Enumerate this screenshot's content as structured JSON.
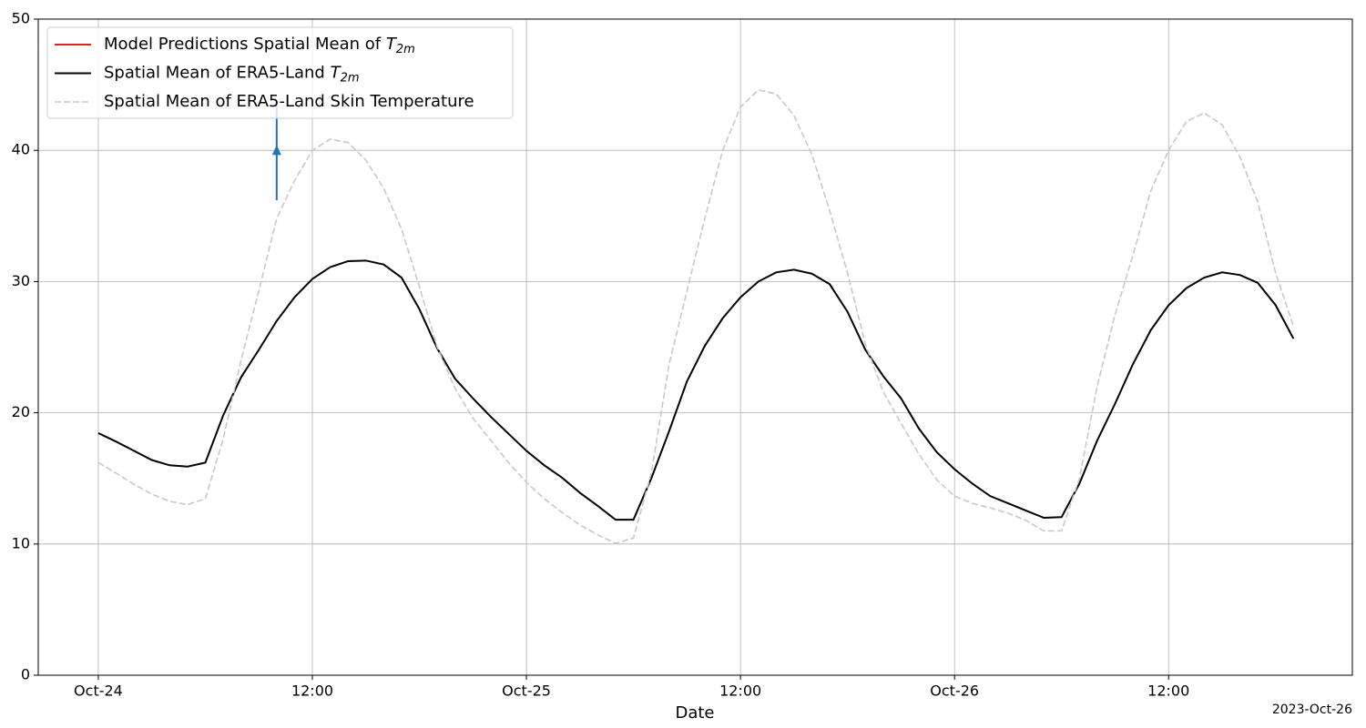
{
  "chart_data": {
    "type": "line",
    "xlabel": "Date",
    "offset_label": "2023-Oct-26",
    "x": [
      "2023-10-24T00:00",
      "2023-10-24T01:00",
      "2023-10-24T02:00",
      "2023-10-24T03:00",
      "2023-10-24T04:00",
      "2023-10-24T05:00",
      "2023-10-24T06:00",
      "2023-10-24T07:00",
      "2023-10-24T08:00",
      "2023-10-24T09:00",
      "2023-10-24T10:00",
      "2023-10-24T11:00",
      "2023-10-24T12:00",
      "2023-10-24T13:00",
      "2023-10-24T14:00",
      "2023-10-24T15:00",
      "2023-10-24T16:00",
      "2023-10-24T17:00",
      "2023-10-24T18:00",
      "2023-10-24T19:00",
      "2023-10-24T20:00",
      "2023-10-24T21:00",
      "2023-10-24T22:00",
      "2023-10-24T23:00",
      "2023-10-25T00:00",
      "2023-10-25T01:00",
      "2023-10-25T02:00",
      "2023-10-25T03:00",
      "2023-10-25T04:00",
      "2023-10-25T05:00",
      "2023-10-25T06:00",
      "2023-10-25T07:00",
      "2023-10-25T08:00",
      "2023-10-25T09:00",
      "2023-10-25T10:00",
      "2023-10-25T11:00",
      "2023-10-25T12:00",
      "2023-10-25T13:00",
      "2023-10-25T14:00",
      "2023-10-25T15:00",
      "2023-10-25T16:00",
      "2023-10-25T17:00",
      "2023-10-25T18:00",
      "2023-10-25T19:00",
      "2023-10-25T20:00",
      "2023-10-25T21:00",
      "2023-10-25T22:00",
      "2023-10-25T23:00",
      "2023-10-26T00:00",
      "2023-10-26T01:00",
      "2023-10-26T02:00",
      "2023-10-26T03:00",
      "2023-10-26T04:00",
      "2023-10-26T05:00",
      "2023-10-26T06:00",
      "2023-10-26T07:00",
      "2023-10-26T08:00",
      "2023-10-26T09:00",
      "2023-10-26T10:00",
      "2023-10-26T11:00",
      "2023-10-26T12:00",
      "2023-10-26T13:00",
      "2023-10-26T14:00",
      "2023-10-26T15:00",
      "2023-10-26T16:00",
      "2023-10-26T17:00",
      "2023-10-26T18:00",
      "2023-10-26T19:00"
    ],
    "series": [
      {
        "name": "Model Predictions Spatial Mean of T2m",
        "color": "#d62728",
        "dash": false,
        "values": [
          null,
          null,
          null,
          null,
          null,
          null,
          null,
          null,
          null,
          null,
          null,
          null,
          null,
          null,
          null,
          null,
          null,
          null,
          null,
          null,
          null,
          null,
          null,
          null,
          null,
          null,
          null,
          null,
          null,
          null,
          null,
          null,
          null,
          null,
          null,
          null,
          null,
          null,
          null,
          null,
          null,
          null,
          null,
          null,
          null,
          null,
          null,
          null,
          null,
          null,
          null,
          null,
          null,
          null,
          null,
          null,
          null,
          null,
          null,
          null,
          null,
          null,
          null,
          null,
          null,
          null,
          null,
          null
        ]
      },
      {
        "name": "Spatial Mean of ERA5-Land T2m",
        "color": "#000000",
        "dash": false,
        "values": [
          18.45,
          17.8,
          17.1,
          16.4,
          16.0,
          15.9,
          16.2,
          19.8,
          22.7,
          24.8,
          27.0,
          28.8,
          30.2,
          31.1,
          31.55,
          31.6,
          31.3,
          30.3,
          27.9,
          24.9,
          22.6,
          21.1,
          19.7,
          18.4,
          17.1,
          16.0,
          15.05,
          13.9,
          12.9,
          11.85,
          11.85,
          15.0,
          18.6,
          22.4,
          25.1,
          27.2,
          28.8,
          30.0,
          30.7,
          30.9,
          30.6,
          29.8,
          27.7,
          24.8,
          22.8,
          21.1,
          18.8,
          17.0,
          15.7,
          14.6,
          13.65,
          13.1,
          12.55,
          12.0,
          12.05,
          14.6,
          17.9,
          20.7,
          23.7,
          26.3,
          28.2,
          29.5,
          30.3,
          30.7,
          30.5,
          29.9,
          28.2,
          25.65
        ]
      },
      {
        "name": "Spatial Mean of ERA5-Land Skin Temperature",
        "color": "#c8c8c8",
        "dash": true,
        "values": [
          16.2,
          15.4,
          14.55,
          13.8,
          13.25,
          13.0,
          13.45,
          18.0,
          24.0,
          29.3,
          34.8,
          37.7,
          40.0,
          40.85,
          40.6,
          39.25,
          37.1,
          34.0,
          29.6,
          25.0,
          21.85,
          19.6,
          17.9,
          16.2,
          14.7,
          13.45,
          12.4,
          11.45,
          10.7,
          10.05,
          10.45,
          15.4,
          23.7,
          29.3,
          34.8,
          40.0,
          43.3,
          44.6,
          44.3,
          42.65,
          39.7,
          35.4,
          30.65,
          25.25,
          21.6,
          19.2,
          16.85,
          14.9,
          13.65,
          13.1,
          12.75,
          12.35,
          11.8,
          11.0,
          11.0,
          15.0,
          22.05,
          27.5,
          32.0,
          36.9,
          40.0,
          42.2,
          42.85,
          41.95,
          39.5,
          36.05,
          30.65,
          26.6
        ]
      }
    ],
    "annotations": [
      {
        "x": "2023-10-24T10:00",
        "y": 40,
        "y_start": 36.2,
        "y_end": 43.6,
        "color": "#1f77b4"
      }
    ],
    "xlim": [
      "2023-10-23T20:38",
      "2023-10-26T22:18"
    ],
    "xticks": [
      {
        "value": "2023-10-24T00:00",
        "label": "Oct-24"
      },
      {
        "value": "2023-10-24T12:00",
        "label": "12:00"
      },
      {
        "value": "2023-10-25T00:00",
        "label": "Oct-25"
      },
      {
        "value": "2023-10-25T12:00",
        "label": "12:00"
      },
      {
        "value": "2023-10-26T00:00",
        "label": "Oct-26"
      },
      {
        "value": "2023-10-26T12:00",
        "label": "12:00"
      }
    ],
    "ylim": [
      0,
      50
    ],
    "yticks": [
      0,
      10,
      20,
      30,
      40,
      50
    ],
    "grid": true,
    "legend": "upper left"
  }
}
